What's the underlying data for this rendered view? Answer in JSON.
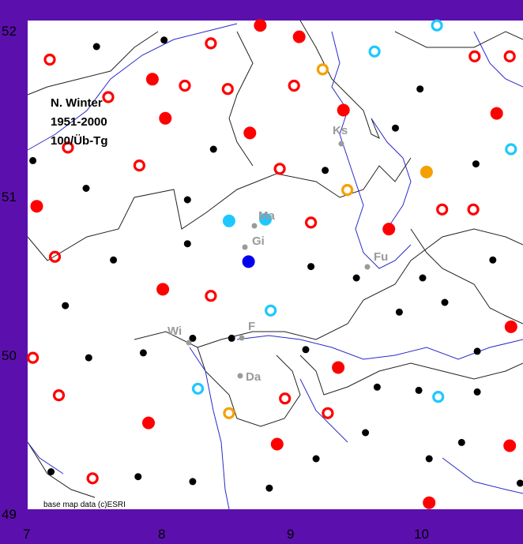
{
  "legend": {
    "line1": "N. Winter",
    "line2": "1951-2000",
    "line3": "100/Üb-Tg"
  },
  "credit": "base map data (c)ESRI",
  "colors": {
    "red": "#ff0000",
    "black": "#000000",
    "cyan": "#1ec8ff",
    "orange": "#f5a000",
    "blue": "#0000ee",
    "gray": "#9a9a9a",
    "river": "#2a2acc",
    "border": "#222222"
  },
  "axes": {
    "x_ticks": [
      "7",
      "8",
      "9",
      "10"
    ],
    "y_ticks": [
      "52",
      "51",
      "50",
      "49"
    ]
  },
  "cities": [
    {
      "name": "Ks"
    },
    {
      "name": "Ma"
    },
    {
      "name": "Gi"
    },
    {
      "name": "Fu"
    },
    {
      "name": "F"
    },
    {
      "name": "Wi"
    },
    {
      "name": "Da"
    }
  ],
  "chart_data": {
    "type": "scatter",
    "x_range": [
      7,
      10.8
    ],
    "y_range": [
      49,
      52
    ],
    "marker_styles": {
      "red_ring": "open red circle",
      "red_dot": "filled red circle",
      "black_dot": "small filled black circle",
      "cyan_ring": "open cyan circle",
      "cyan_dot": "filled cyan circle",
      "orange_ring": "open orange circle",
      "blue_dot": "filled blue circle"
    },
    "stations": [
      {
        "x": 7.17,
        "y": 51.76,
        "s": "red_ring"
      },
      {
        "x": 7.53,
        "y": 51.84,
        "s": "black_dot"
      },
      {
        "x": 7.04,
        "y": 51.14,
        "s": "black_dot"
      },
      {
        "x": 7.31,
        "y": 51.22,
        "s": "red_ring"
      },
      {
        "x": 7.62,
        "y": 51.53,
        "s": "red_ring"
      },
      {
        "x": 7.96,
        "y": 51.64,
        "s": "red_dot"
      },
      {
        "x": 8.06,
        "y": 51.4,
        "s": "red_dot"
      },
      {
        "x": 8.05,
        "y": 51.88,
        "s": "black_dot"
      },
      {
        "x": 8.41,
        "y": 51.86,
        "s": "red_ring"
      },
      {
        "x": 8.21,
        "y": 51.6,
        "s": "red_ring"
      },
      {
        "x": 8.43,
        "y": 51.21,
        "s": "black_dot"
      },
      {
        "x": 8.54,
        "y": 51.58,
        "s": "red_ring"
      },
      {
        "x": 8.71,
        "y": 51.31,
        "s": "red_dot"
      },
      {
        "x": 8.79,
        "y": 51.97,
        "s": "red_dot"
      },
      {
        "x": 9.09,
        "y": 51.9,
        "s": "red_dot"
      },
      {
        "x": 9.05,
        "y": 51.6,
        "s": "red_ring"
      },
      {
        "x": 9.27,
        "y": 51.7,
        "s": "orange_ring"
      },
      {
        "x": 9.43,
        "y": 51.45,
        "s": "red_dot"
      },
      {
        "x": 9.67,
        "y": 51.81,
        "s": "cyan_ring"
      },
      {
        "x": 9.83,
        "y": 51.34,
        "s": "black_dot"
      },
      {
        "x": 10.02,
        "y": 51.58,
        "s": "black_dot"
      },
      {
        "x": 10.15,
        "y": 51.97,
        "s": "cyan_ring"
      },
      {
        "x": 10.44,
        "y": 51.78,
        "s": "red_ring"
      },
      {
        "x": 10.71,
        "y": 51.78,
        "s": "red_ring"
      },
      {
        "x": 10.61,
        "y": 51.43,
        "s": "red_dot"
      },
      {
        "x": 10.72,
        "y": 51.21,
        "s": "cyan_ring"
      },
      {
        "x": 10.45,
        "y": 51.12,
        "s": "black_dot"
      },
      {
        "x": 10.07,
        "y": 51.07,
        "s": "orange_dot_filled"
      },
      {
        "x": 7.07,
        "y": 50.86,
        "s": "red_dot"
      },
      {
        "x": 7.45,
        "y": 50.97,
        "s": "black_dot"
      },
      {
        "x": 7.86,
        "y": 51.11,
        "s": "red_ring"
      },
      {
        "x": 8.23,
        "y": 50.9,
        "s": "black_dot"
      },
      {
        "x": 8.23,
        "y": 50.63,
        "s": "black_dot"
      },
      {
        "x": 8.94,
        "y": 51.09,
        "s": "red_ring"
      },
      {
        "x": 9.29,
        "y": 51.08,
        "s": "black_dot"
      },
      {
        "x": 9.46,
        "y": 50.96,
        "s": "orange_ring"
      },
      {
        "x": 9.18,
        "y": 50.76,
        "s": "red_ring"
      },
      {
        "x": 9.78,
        "y": 50.72,
        "s": "red_dot"
      },
      {
        "x": 10.19,
        "y": 50.84,
        "s": "red_ring"
      },
      {
        "x": 10.43,
        "y": 50.84,
        "s": "red_ring"
      },
      {
        "x": 10.58,
        "y": 50.53,
        "s": "black_dot"
      },
      {
        "x": 7.21,
        "y": 50.55,
        "s": "red_ring"
      },
      {
        "x": 7.66,
        "y": 50.53,
        "s": "black_dot"
      },
      {
        "x": 8.04,
        "y": 50.35,
        "s": "red_dot"
      },
      {
        "x": 8.41,
        "y": 50.31,
        "s": "red_ring"
      },
      {
        "x": 8.55,
        "y": 50.77,
        "s": "cyan_dot"
      },
      {
        "x": 8.83,
        "y": 50.78,
        "s": "cyan_dot"
      },
      {
        "x": 8.7,
        "y": 50.52,
        "s": "blue_dot"
      },
      {
        "x": 9.18,
        "y": 50.49,
        "s": "black_dot"
      },
      {
        "x": 9.53,
        "y": 50.42,
        "s": "black_dot"
      },
      {
        "x": 10.04,
        "y": 50.42,
        "s": "black_dot"
      },
      {
        "x": 8.87,
        "y": 50.22,
        "s": "cyan_ring"
      },
      {
        "x": 7.29,
        "y": 50.25,
        "s": "black_dot"
      },
      {
        "x": 7.04,
        "y": 49.93,
        "s": "red_ring"
      },
      {
        "x": 7.47,
        "y": 49.93,
        "s": "black_dot"
      },
      {
        "x": 7.89,
        "y": 49.96,
        "s": "black_dot"
      },
      {
        "x": 8.27,
        "y": 50.05,
        "s": "black_dot"
      },
      {
        "x": 8.57,
        "y": 50.05,
        "s": "black_dot"
      },
      {
        "x": 9.14,
        "y": 49.98,
        "s": "black_dot"
      },
      {
        "x": 9.39,
        "y": 49.87,
        "s": "red_dot"
      },
      {
        "x": 9.86,
        "y": 50.21,
        "s": "black_dot"
      },
      {
        "x": 10.21,
        "y": 50.27,
        "s": "black_dot"
      },
      {
        "x": 10.72,
        "y": 50.12,
        "s": "red_dot"
      },
      {
        "x": 10.46,
        "y": 49.97,
        "s": "black_dot"
      },
      {
        "x": 7.24,
        "y": 49.7,
        "s": "red_ring"
      },
      {
        "x": 7.93,
        "y": 49.53,
        "s": "red_dot"
      },
      {
        "x": 8.31,
        "y": 49.74,
        "s": "cyan_ring"
      },
      {
        "x": 8.55,
        "y": 49.59,
        "s": "orange_ring"
      },
      {
        "x": 8.98,
        "y": 49.68,
        "s": "red_ring"
      },
      {
        "x": 9.31,
        "y": 49.59,
        "s": "red_ring"
      },
      {
        "x": 9.69,
        "y": 49.75,
        "s": "black_dot"
      },
      {
        "x": 9.6,
        "y": 49.47,
        "s": "black_dot"
      },
      {
        "x": 10.01,
        "y": 49.73,
        "s": "black_dot"
      },
      {
        "x": 10.16,
        "y": 49.69,
        "s": "cyan_ring"
      },
      {
        "x": 10.46,
        "y": 49.72,
        "s": "black_dot"
      },
      {
        "x": 10.34,
        "y": 49.41,
        "s": "black_dot"
      },
      {
        "x": 10.71,
        "y": 49.39,
        "s": "red_dot"
      },
      {
        "x": 7.18,
        "y": 49.23,
        "s": "black_dot"
      },
      {
        "x": 7.5,
        "y": 49.19,
        "s": "red_ring"
      },
      {
        "x": 7.85,
        "y": 49.2,
        "s": "black_dot"
      },
      {
        "x": 8.27,
        "y": 49.17,
        "s": "black_dot"
      },
      {
        "x": 8.86,
        "y": 49.13,
        "s": "black_dot"
      },
      {
        "x": 8.92,
        "y": 49.4,
        "s": "red_dot"
      },
      {
        "x": 9.22,
        "y": 49.31,
        "s": "black_dot"
      },
      {
        "x": 10.09,
        "y": 49.31,
        "s": "black_dot"
      },
      {
        "x": 10.09,
        "y": 49.04,
        "s": "red_dot"
      },
      {
        "x": 10.79,
        "y": 49.16,
        "s": "black_dot"
      }
    ]
  }
}
